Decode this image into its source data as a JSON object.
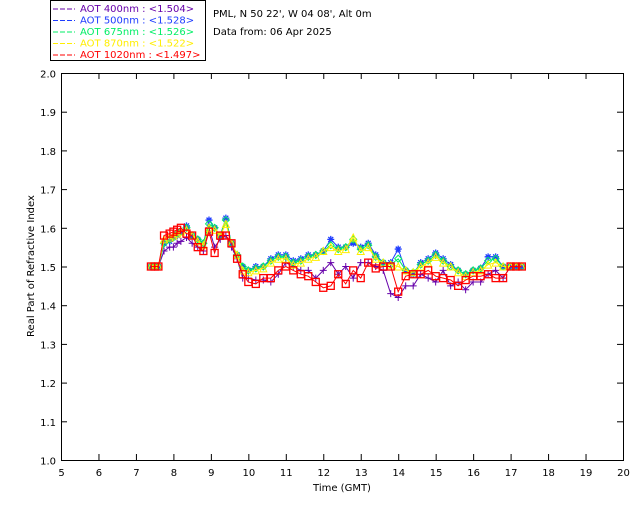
{
  "header": {
    "site": "PML, N 50 22', W 04 08', Alt 0m",
    "date": "Data from: 06 Apr 2025"
  },
  "chart_data": {
    "type": "line",
    "title": "",
    "xlabel": "Time (GMT)",
    "ylabel": "Real Part of Refractive Index",
    "xlim": [
      5,
      20
    ],
    "ylim": [
      1.0,
      2.0
    ],
    "xticks": [
      "5",
      "6",
      "7",
      "8",
      "9",
      "10",
      "11",
      "12",
      "13",
      "14",
      "15",
      "16",
      "17",
      "18",
      "19",
      "20"
    ],
    "yticks": [
      "1.0",
      "1.1",
      "1.2",
      "1.3",
      "1.4",
      "1.5",
      "1.6",
      "1.7",
      "1.8",
      "1.9",
      "2.0"
    ],
    "legend_position": "top-left-outside",
    "x": [
      7.4,
      7.5,
      7.6,
      7.75,
      7.9,
      8.0,
      8.1,
      8.2,
      8.35,
      8.5,
      8.65,
      8.8,
      8.95,
      9.1,
      9.25,
      9.4,
      9.55,
      9.7,
      9.85,
      10.0,
      10.2,
      10.4,
      10.6,
      10.8,
      11.0,
      11.2,
      11.4,
      11.6,
      11.8,
      12.0,
      12.2,
      12.4,
      12.6,
      12.8,
      13.0,
      13.2,
      13.4,
      13.6,
      13.8,
      14.0,
      14.2,
      14.4,
      14.6,
      14.8,
      15.0,
      15.2,
      15.4,
      15.6,
      15.8,
      16.0,
      16.2,
      16.4,
      16.6,
      16.8,
      17.0,
      17.15,
      17.3
    ],
    "series": [
      {
        "name": "AOT  400nm : <1.504>",
        "color": "#6600aa",
        "marker": "plus",
        "values": [
          1.5,
          1.5,
          1.5,
          1.54,
          1.55,
          1.55,
          1.56,
          1.565,
          1.575,
          1.56,
          1.55,
          1.54,
          1.6,
          1.55,
          1.57,
          1.58,
          1.55,
          1.52,
          1.47,
          1.47,
          1.465,
          1.465,
          1.46,
          1.48,
          1.51,
          1.5,
          1.49,
          1.49,
          1.47,
          1.49,
          1.51,
          1.48,
          1.5,
          1.47,
          1.51,
          1.51,
          1.5,
          1.49,
          1.43,
          1.42,
          1.45,
          1.45,
          1.48,
          1.47,
          1.46,
          1.49,
          1.45,
          1.46,
          1.44,
          1.46,
          1.46,
          1.48,
          1.49,
          1.47,
          1.5,
          1.5,
          1.5
        ]
      },
      {
        "name": "AOT  500nm : <1.528>",
        "color": "#1e3cff",
        "marker": "asterisk",
        "values": [
          1.5,
          1.5,
          1.5,
          1.56,
          1.565,
          1.575,
          1.58,
          1.59,
          1.605,
          1.58,
          1.57,
          1.56,
          1.62,
          1.6,
          1.58,
          1.625,
          1.56,
          1.53,
          1.5,
          1.49,
          1.5,
          1.5,
          1.52,
          1.53,
          1.53,
          1.515,
          1.52,
          1.53,
          1.53,
          1.54,
          1.57,
          1.55,
          1.55,
          1.56,
          1.55,
          1.56,
          1.53,
          1.51,
          1.51,
          1.545,
          1.49,
          1.48,
          1.51,
          1.52,
          1.535,
          1.52,
          1.505,
          1.49,
          1.48,
          1.49,
          1.495,
          1.525,
          1.525,
          1.5,
          1.5,
          1.5,
          1.5
        ]
      },
      {
        "name": "AOT  675nm : <1.526>",
        "color": "#00ee66",
        "marker": "diamond",
        "values": [
          1.5,
          1.5,
          1.5,
          1.56,
          1.57,
          1.575,
          1.585,
          1.59,
          1.6,
          1.58,
          1.57,
          1.56,
          1.61,
          1.6,
          1.58,
          1.62,
          1.56,
          1.53,
          1.5,
          1.49,
          1.495,
          1.5,
          1.515,
          1.525,
          1.525,
          1.51,
          1.515,
          1.525,
          1.53,
          1.54,
          1.555,
          1.545,
          1.55,
          1.57,
          1.545,
          1.555,
          1.525,
          1.51,
          1.505,
          1.52,
          1.49,
          1.485,
          1.505,
          1.515,
          1.53,
          1.515,
          1.5,
          1.49,
          1.48,
          1.49,
          1.495,
          1.515,
          1.52,
          1.5,
          1.5,
          1.5,
          1.5
        ]
      },
      {
        "name": "AOT  870nm : <1.522>",
        "color": "#ffee00",
        "marker": "triangle",
        "values": [
          1.5,
          1.5,
          1.5,
          1.57,
          1.575,
          1.58,
          1.585,
          1.59,
          1.595,
          1.58,
          1.565,
          1.555,
          1.6,
          1.595,
          1.58,
          1.61,
          1.56,
          1.53,
          1.49,
          1.485,
          1.49,
          1.495,
          1.51,
          1.52,
          1.52,
          1.505,
          1.51,
          1.52,
          1.525,
          1.54,
          1.55,
          1.54,
          1.545,
          1.575,
          1.54,
          1.55,
          1.52,
          1.51,
          1.505,
          1.5,
          1.49,
          1.485,
          1.5,
          1.51,
          1.525,
          1.51,
          1.5,
          1.485,
          1.475,
          1.485,
          1.49,
          1.505,
          1.51,
          1.5,
          1.5,
          1.5,
          1.5
        ]
      },
      {
        "name": "AOT 1020nm : <1.497>",
        "color": "#ff0000",
        "marker": "square",
        "values": [
          1.5,
          1.5,
          1.5,
          1.58,
          1.585,
          1.59,
          1.595,
          1.6,
          1.585,
          1.58,
          1.55,
          1.54,
          1.59,
          1.535,
          1.58,
          1.58,
          1.56,
          1.52,
          1.48,
          1.46,
          1.455,
          1.47,
          1.47,
          1.49,
          1.5,
          1.49,
          1.48,
          1.475,
          1.46,
          1.445,
          1.45,
          1.48,
          1.455,
          1.49,
          1.47,
          1.51,
          1.495,
          1.5,
          1.5,
          1.435,
          1.475,
          1.48,
          1.48,
          1.49,
          1.475,
          1.47,
          1.465,
          1.45,
          1.465,
          1.475,
          1.475,
          1.48,
          1.47,
          1.47,
          1.5,
          1.5,
          1.5
        ]
      }
    ]
  }
}
